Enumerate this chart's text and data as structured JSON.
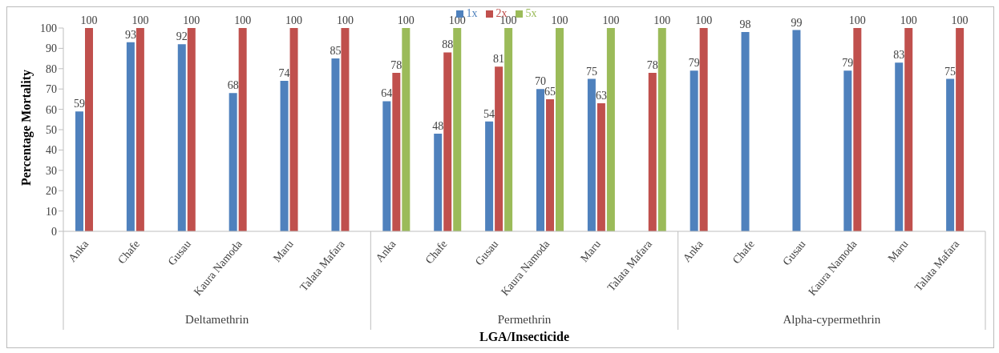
{
  "chart_data": {
    "type": "bar",
    "xlabel": "LGA/Insecticide",
    "ylabel": "Percentage Mortality",
    "categories": [
      "Anka",
      "Chafe",
      "Gusau",
      "Kaura Namoda",
      "Maru",
      "Talata Mafara",
      "Anka",
      "Chafe",
      "Gusau",
      "Kaura Namoda",
      "Maru",
      "Talata Mafara",
      "Anka",
      "Chafe",
      "Gusau",
      "Kaura Namoda",
      "Maru",
      "Talata Mafara"
    ],
    "series": [
      {
        "name": "1x",
        "color": "#4f81bd",
        "values": [
          59,
          93,
          92,
          68,
          74,
          85,
          64,
          48,
          54,
          70,
          75,
          null,
          79,
          98,
          99,
          79,
          83,
          75
        ]
      },
      {
        "name": "2x",
        "color": "#c0504d",
        "values": [
          100,
          100,
          100,
          100,
          100,
          100,
          78,
          88,
          81,
          65,
          63,
          78,
          100,
          null,
          null,
          100,
          100,
          100
        ]
      },
      {
        "name": "5x",
        "color": "#9bbb59",
        "values": [
          null,
          null,
          null,
          null,
          null,
          null,
          100,
          100,
          100,
          100,
          100,
          100,
          null,
          null,
          null,
          null,
          null,
          null
        ]
      }
    ],
    "annotations": [
      "Deltamethrin",
      "Permethrin",
      "Alpha-cypermethrin"
    ],
    "ylim": [
      0,
      100
    ],
    "yticks": [
      0,
      10,
      20,
      30,
      40,
      50,
      60,
      70,
      80,
      90,
      100
    ],
    "data_labels": true,
    "legend": "top"
  }
}
